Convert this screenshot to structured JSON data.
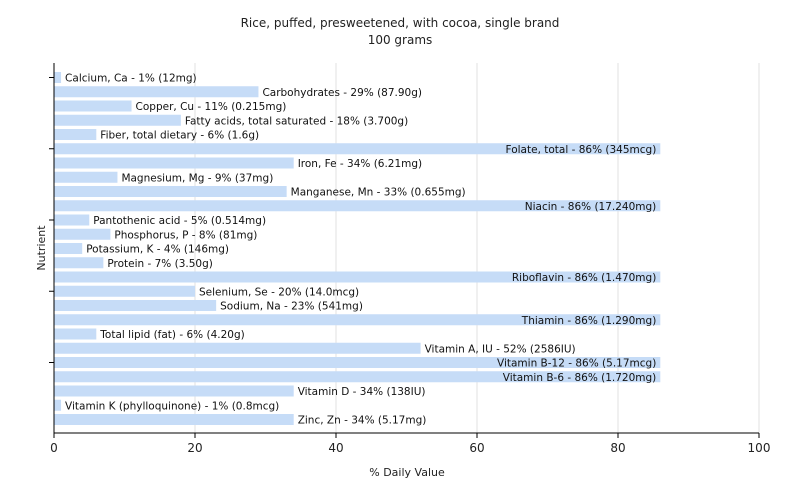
{
  "chart_data": {
    "type": "bar",
    "orientation": "horizontal",
    "title": "Rice, puffed, presweetened, with cocoa, single brand",
    "subtitle": "100 grams",
    "xlabel": "% Daily Value",
    "ylabel": "Nutrient",
    "xlim": [
      0,
      100
    ],
    "xticks": [
      "0",
      "20",
      "40",
      "60",
      "80",
      "100"
    ],
    "grid": true,
    "bar_color": "#c6dcf7",
    "categories": [
      "Calcium, Ca",
      "Carbohydrates",
      "Copper, Cu",
      "Fatty acids, total saturated",
      "Fiber, total dietary",
      "Folate, total",
      "Iron, Fe",
      "Magnesium, Mg",
      "Manganese, Mn",
      "Niacin",
      "Pantothenic acid",
      "Phosphorus, P",
      "Potassium, K",
      "Protein",
      "Riboflavin",
      "Selenium, Se",
      "Sodium, Na",
      "Thiamin",
      "Total lipid (fat)",
      "Vitamin A, IU",
      "Vitamin B-12",
      "Vitamin B-6",
      "Vitamin D",
      "Vitamin K (phylloquinone)",
      "Zinc, Zn"
    ],
    "values": [
      1,
      29,
      11,
      18,
      6,
      86,
      34,
      9,
      33,
      86,
      5,
      8,
      4,
      7,
      86,
      20,
      23,
      86,
      6,
      52,
      86,
      86,
      34,
      1,
      34
    ],
    "labels": [
      "Calcium, Ca - 1% (12mg)",
      "Carbohydrates - 29% (87.90g)",
      "Copper, Cu - 11% (0.215mg)",
      "Fatty acids, total saturated - 18% (3.700g)",
      "Fiber, total dietary - 6% (1.6g)",
      "Folate, total - 86% (345mcg)",
      "Iron, Fe - 34% (6.21mg)",
      "Magnesium, Mg - 9% (37mg)",
      "Manganese, Mn - 33% (0.655mg)",
      "Niacin - 86% (17.240mg)",
      "Pantothenic acid - 5% (0.514mg)",
      "Phosphorus, P - 8% (81mg)",
      "Potassium, K - 4% (146mg)",
      "Protein - 7% (3.50g)",
      "Riboflavin - 86% (1.470mg)",
      "Selenium, Se - 20% (14.0mcg)",
      "Sodium, Na - 23% (541mg)",
      "Thiamin - 86% (1.290mg)",
      "Total lipid (fat) - 6% (4.20g)",
      "Vitamin A, IU - 52% (2586IU)",
      "Vitamin B-12 - 86% (5.17mcg)",
      "Vitamin B-6 - 86% (1.720mg)",
      "Vitamin D - 34% (138IU)",
      "Vitamin K (phylloquinone) - 1% (0.8mcg)",
      "Zinc, Zn - 34% (5.17mg)"
    ]
  }
}
